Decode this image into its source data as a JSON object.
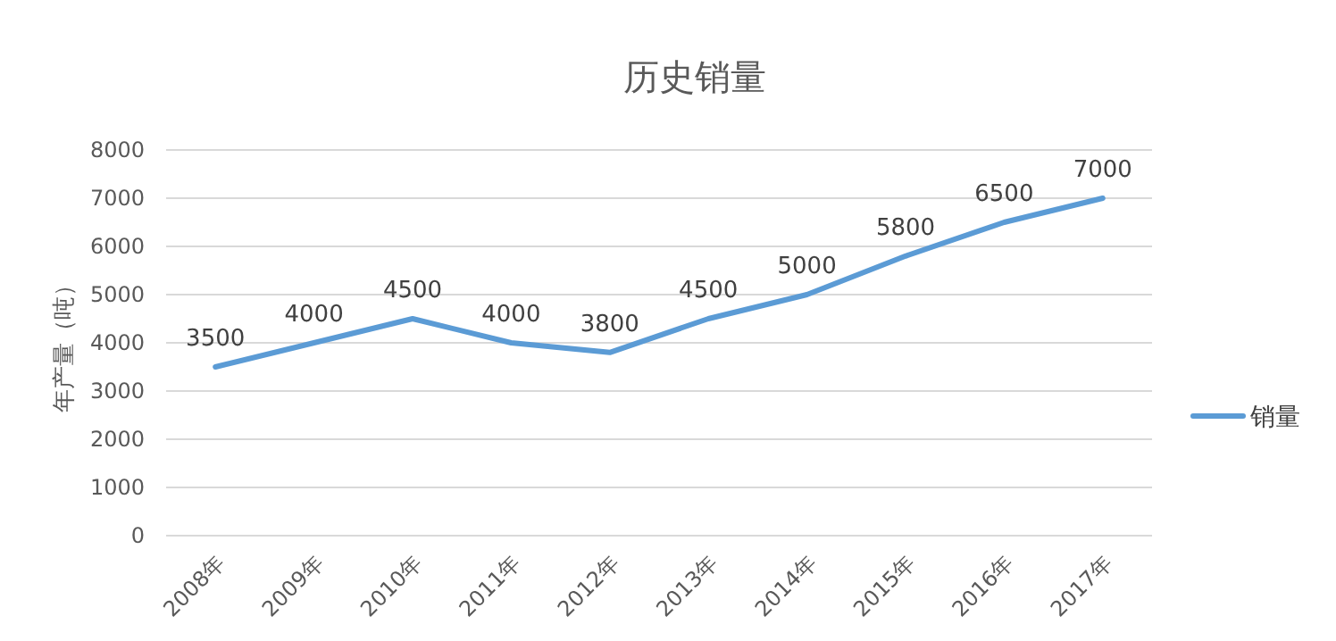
{
  "chart_data": {
    "type": "line",
    "title": "历史销量",
    "ylabel": "年产量（吨）",
    "categories": [
      "2008年",
      "2009年",
      "2010年",
      "2011年",
      "2012年",
      "2013年",
      "2014年",
      "2015年",
      "2016年",
      "2017年"
    ],
    "series": [
      {
        "name": "销量",
        "color": "#5b9bd5",
        "values": [
          3500,
          4000,
          4500,
          4000,
          3800,
          4500,
          5000,
          5800,
          6500,
          7000
        ]
      }
    ],
    "ylim": [
      0,
      8000
    ],
    "yticks": [
      0,
      1000,
      2000,
      3000,
      4000,
      5000,
      6000,
      7000,
      8000
    ],
    "grid": "y",
    "legend": "right",
    "data_labels": true,
    "marker": "none",
    "line_style": "solid"
  }
}
